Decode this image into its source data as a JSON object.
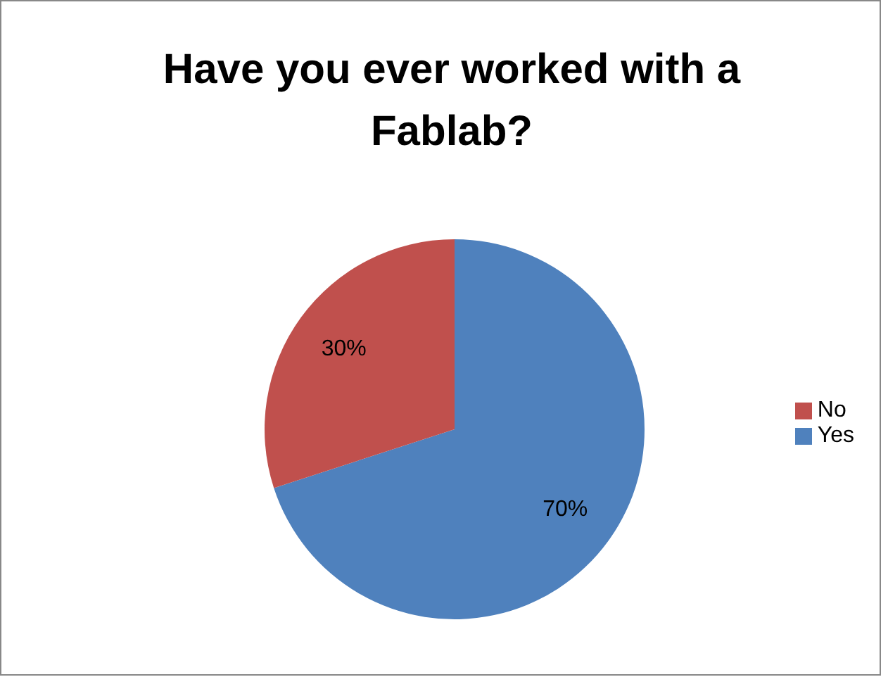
{
  "chart_data": {
    "type": "pie",
    "title": "Have you ever worked with a Fablab?",
    "categories": [
      "Yes",
      "No"
    ],
    "values": [
      70,
      30
    ],
    "colors": [
      "#4f81bd",
      "#c0504d"
    ],
    "value_labels": [
      "70%",
      "30%"
    ],
    "legend": "right"
  }
}
